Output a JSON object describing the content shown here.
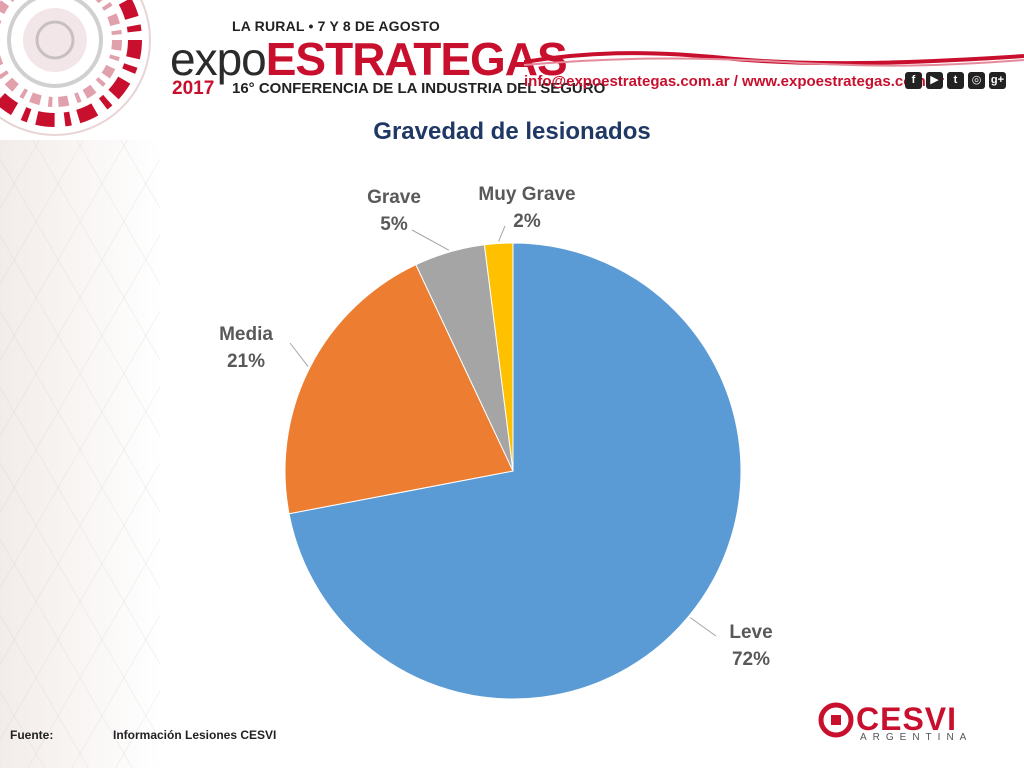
{
  "header": {
    "event_top": "LA RURAL • 7 Y 8 DE AGOSTO",
    "logo_expo": "expo",
    "logo_estrategas": "ESTRATEGAS",
    "year": "2017",
    "conference": "16° CONFERENCIA DE LA INDUSTRIA DEL SEGURO",
    "contact": "info@expoestrategas.com.ar / www.expoestrategas.com.ar",
    "social_icons": [
      "facebook-icon",
      "youtube-icon",
      "twitter-icon",
      "instagram-icon",
      "google-plus-icon"
    ],
    "social_glyphs": [
      "f",
      "▶",
      "t",
      "◎",
      "g+"
    ]
  },
  "chart_data": {
    "type": "pie",
    "title": "Gravedad de lesionados",
    "slices": [
      {
        "label": "Leve",
        "value": 72,
        "pct_text": "72%",
        "color": "#5b9bd5"
      },
      {
        "label": "Media",
        "value": 21,
        "pct_text": "21%",
        "color": "#ed7d31"
      },
      {
        "label": "Grave",
        "value": 5,
        "pct_text": "5%",
        "color": "#a5a5a5"
      },
      {
        "label": "Muy Grave",
        "value": 2,
        "pct_text": "2%",
        "color": "#ffc000"
      }
    ]
  },
  "footer": {
    "label": "Fuente:",
    "value": "Información Lesiones CESVI"
  },
  "brand": {
    "name": "CESVI",
    "sub": "ARGENTINA",
    "color": "#c8102e"
  }
}
